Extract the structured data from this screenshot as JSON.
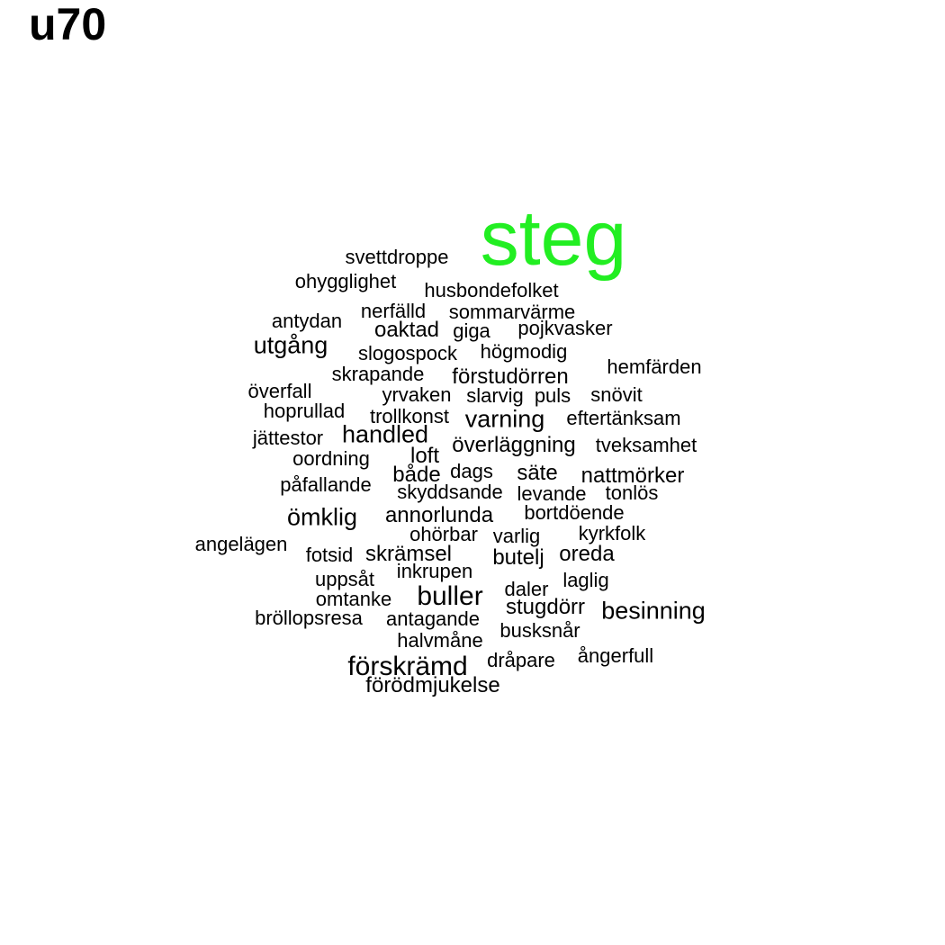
{
  "title": "u70",
  "colors": {
    "highlight": "#22ee22",
    "default": "#000000"
  },
  "words": [
    {
      "text": "steg",
      "highlight": true
    },
    {
      "text": "svettdroppe"
    },
    {
      "text": "ohygglighet"
    },
    {
      "text": "husbondefolket"
    },
    {
      "text": "nerfälld"
    },
    {
      "text": "sommarvärme"
    },
    {
      "text": "antydan"
    },
    {
      "text": "oaktad"
    },
    {
      "text": "giga"
    },
    {
      "text": "pojkvasker"
    },
    {
      "text": "utgång"
    },
    {
      "text": "slogospock"
    },
    {
      "text": "högmodig"
    },
    {
      "text": "skrapande"
    },
    {
      "text": "förstudörren"
    },
    {
      "text": "hemfärden"
    },
    {
      "text": "överfall"
    },
    {
      "text": "yrvaken"
    },
    {
      "text": "slarvig"
    },
    {
      "text": "puls"
    },
    {
      "text": "snövit"
    },
    {
      "text": "hoprullad"
    },
    {
      "text": "trollkonst"
    },
    {
      "text": "varning"
    },
    {
      "text": "eftertänksam"
    },
    {
      "text": "jättestor"
    },
    {
      "text": "handled"
    },
    {
      "text": "överläggning"
    },
    {
      "text": "tveksamhet"
    },
    {
      "text": "oordning"
    },
    {
      "text": "loft"
    },
    {
      "text": "både"
    },
    {
      "text": "dags"
    },
    {
      "text": "säte"
    },
    {
      "text": "nattmörker"
    },
    {
      "text": "påfallande"
    },
    {
      "text": "skyddsande"
    },
    {
      "text": "levande"
    },
    {
      "text": "tonlös"
    },
    {
      "text": "ömklig"
    },
    {
      "text": "annorlunda"
    },
    {
      "text": "bortdöende"
    },
    {
      "text": "angelägen"
    },
    {
      "text": "ohörbar"
    },
    {
      "text": "varlig"
    },
    {
      "text": "kyrkfolk"
    },
    {
      "text": "fotsid"
    },
    {
      "text": "skrämsel"
    },
    {
      "text": "butelj"
    },
    {
      "text": "oreda"
    },
    {
      "text": "uppsåt"
    },
    {
      "text": "inkrupen"
    },
    {
      "text": "laglig"
    },
    {
      "text": "omtanke"
    },
    {
      "text": "buller"
    },
    {
      "text": "daler"
    },
    {
      "text": "stugdörr"
    },
    {
      "text": "besinning"
    },
    {
      "text": "bröllopsresa"
    },
    {
      "text": "antagande"
    },
    {
      "text": "busksnår"
    },
    {
      "text": "halvmåne"
    },
    {
      "text": "förskrämd"
    },
    {
      "text": "dråpare"
    },
    {
      "text": "ångerfull"
    },
    {
      "text": "förödmjukelse"
    }
  ]
}
